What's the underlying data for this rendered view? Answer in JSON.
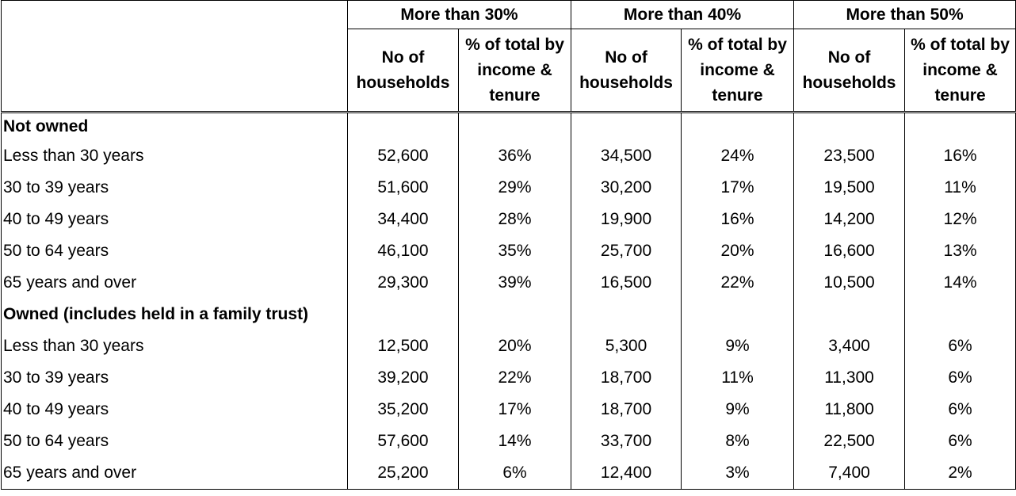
{
  "header": {
    "groups": [
      "More than 30%",
      "More than 40%",
      "More than 50%"
    ],
    "sub": {
      "count_line1": "No of",
      "count_line2": "households",
      "pct_line1": "% of total by",
      "pct_line2": "income &",
      "pct_line3": "tenure"
    }
  },
  "rows": [
    {
      "label": "Not owned",
      "section": true,
      "values": [
        "",
        "",
        "",
        "",
        "",
        ""
      ]
    },
    {
      "label": "Less than 30 years",
      "values": [
        "52,600",
        "36%",
        "34,500",
        "24%",
        "23,500",
        "16%"
      ]
    },
    {
      "label": "30 to 39 years",
      "values": [
        "51,600",
        "29%",
        "30,200",
        "17%",
        "19,500",
        "11%"
      ]
    },
    {
      "label": "40 to 49 years",
      "values": [
        "34,400",
        "28%",
        "19,900",
        "16%",
        "14,200",
        "12%"
      ]
    },
    {
      "label": "50 to 64 years",
      "values": [
        "46,100",
        "35%",
        "25,700",
        "20%",
        "16,600",
        "13%"
      ]
    },
    {
      "label": "65 years and over",
      "values": [
        "29,300",
        "39%",
        "16,500",
        "22%",
        "10,500",
        "14%"
      ]
    },
    {
      "label": "Owned (includes held in a family trust)",
      "section": true,
      "values": [
        "",
        "",
        "",
        "",
        "",
        ""
      ]
    },
    {
      "label": "Less than 30 years",
      "values": [
        "12,500",
        "20%",
        "5,300",
        "9%",
        "3,400",
        "6%"
      ]
    },
    {
      "label": "30 to 39 years",
      "values": [
        "39,200",
        "22%",
        "18,700",
        "11%",
        "11,300",
        "6%"
      ]
    },
    {
      "label": "40 to 49 years",
      "values": [
        "35,200",
        "17%",
        "18,700",
        "9%",
        "11,800",
        "6%"
      ]
    },
    {
      "label": "50 to 64 years",
      "values": [
        "57,600",
        "14%",
        "33,700",
        "8%",
        "22,500",
        "6%"
      ]
    },
    {
      "label": "65 years and over",
      "values": [
        "25,200",
        "6%",
        "12,400",
        "3%",
        "7,400",
        "2%"
      ]
    }
  ]
}
